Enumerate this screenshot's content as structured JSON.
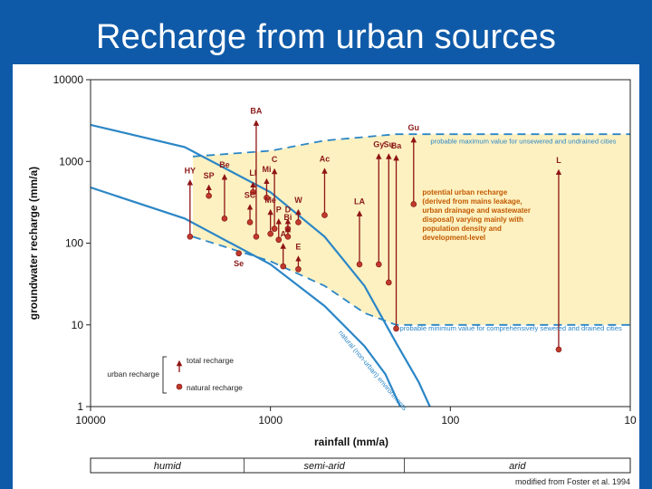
{
  "slide": {
    "title": "Recharge from urban sources",
    "background_color": "#0f5aa8"
  },
  "chart_data": {
    "type": "scatter",
    "xlabel": "rainfall (mm/a)",
    "ylabel": "groundwater recharge (mm/a)",
    "x_axis": {
      "scale": "log",
      "reversed": true,
      "range": [
        10000,
        10
      ],
      "ticks": [
        10000,
        1000,
        100,
        10
      ],
      "tick_labels": [
        "10000",
        "1000",
        "100",
        "10"
      ]
    },
    "y_axis": {
      "scale": "log",
      "range": [
        1,
        10000
      ],
      "ticks": [
        1,
        10,
        100,
        1000,
        10000
      ],
      "tick_labels": [
        "1",
        "10",
        "100",
        "1000",
        "10000"
      ]
    },
    "colors": {
      "shade": "#fdf1c1",
      "curve": "#2b86c6",
      "arrow": "#8f1414",
      "dot": "#c0392b",
      "label": "#8b1a1a",
      "annotation": "#c25a00"
    },
    "cities": [
      {
        "label": "BA",
        "rainfall": 1200,
        "natural": 120,
        "total": 3200
      },
      {
        "label": "Be",
        "rainfall": 1800,
        "natural": 200,
        "total": 700
      },
      {
        "label": "SP",
        "rainfall": 2200,
        "natural": 380,
        "total": 520
      },
      {
        "label": "HY",
        "rainfall": 2800,
        "natural": 120,
        "total": 600
      },
      {
        "label": "Mi",
        "rainfall": 1050,
        "natural": 360,
        "total": 620
      },
      {
        "label": "LI",
        "rainfall": 1250,
        "natural": 420,
        "total": 560
      },
      {
        "label": "C",
        "rainfall": 950,
        "natural": 150,
        "total": 820
      },
      {
        "label": "D",
        "rainfall": 800,
        "natural": 150,
        "total": 200
      },
      {
        "label": "W",
        "rainfall": 700,
        "natural": 180,
        "total": 260
      },
      {
        "label": "SC",
        "rainfall": 1300,
        "natural": 180,
        "total": 300
      },
      {
        "label": "Me",
        "rainfall": 1000,
        "natural": 130,
        "total": 260
      },
      {
        "label": "P",
        "rainfall": 900,
        "natural": 110,
        "total": 200
      },
      {
        "label": "Bi",
        "rainfall": 800,
        "natural": 120,
        "total": 160
      },
      {
        "label": "Ac",
        "rainfall": 500,
        "natural": 220,
        "total": 830
      },
      {
        "label": "Se",
        "rainfall": 1500,
        "natural": 75,
        "total": null
      },
      {
        "label": "A",
        "rainfall": 850,
        "natural": 52,
        "total": 100
      },
      {
        "label": "E",
        "rainfall": 700,
        "natural": 48,
        "total": 70
      },
      {
        "label": "LA",
        "rainfall": 320,
        "natural": 55,
        "total": 250
      },
      {
        "label": "Gy",
        "rainfall": 250,
        "natural": 55,
        "total": 1250
      },
      {
        "label": "Su",
        "rainfall": 220,
        "natural": 33,
        "total": 1250
      },
      {
        "label": "Ba",
        "rainfall": 200,
        "natural": 9,
        "total": 1200
      },
      {
        "label": "Gu",
        "rainfall": 160,
        "natural": 300,
        "total": 2000
      },
      {
        "label": "L",
        "rainfall": 25,
        "natural": 5,
        "total": 800
      }
    ],
    "curves": {
      "natural_upper": [
        [
          10000,
          2800
        ],
        [
          3000,
          1500
        ],
        [
          1000,
          420
        ],
        [
          500,
          120
        ],
        [
          300,
          30
        ],
        [
          200,
          6
        ],
        [
          150,
          2
        ],
        [
          130,
          1
        ]
      ],
      "natural_lower": [
        [
          10000,
          480
        ],
        [
          3000,
          200
        ],
        [
          1000,
          55
        ],
        [
          500,
          17
        ],
        [
          300,
          5.5
        ],
        [
          230,
          2.5
        ],
        [
          190,
          1
        ]
      ],
      "maximum_dashed": [
        [
          2700,
          1150
        ],
        [
          1000,
          1350
        ],
        [
          500,
          1800
        ],
        [
          200,
          2150
        ],
        [
          10,
          2150
        ]
      ],
      "minimum_dashed": [
        [
          2700,
          120
        ],
        [
          1000,
          60
        ],
        [
          500,
          30
        ],
        [
          300,
          14
        ],
        [
          200,
          10
        ],
        [
          10,
          10
        ]
      ]
    },
    "annotations": {
      "max_line": "probable maximum value for unsewered and undrained cities",
      "min_line": "probable minimum value for comprehensively sewered and drained cities",
      "natural_curve": "natural (non-urban) environments",
      "potential": [
        "potential urban recharge",
        "(derived from mains leakage,",
        "urban drainage and wastewater",
        "disposal) varying mainly with",
        "population density and",
        "development-level"
      ]
    },
    "legend": {
      "group_label": "urban recharge",
      "total_label": "total recharge",
      "natural_label": "natural recharge"
    },
    "climate_bar": [
      "humid",
      "semi-arid",
      "arid"
    ],
    "credit": "modified from Foster et al. 1994"
  }
}
